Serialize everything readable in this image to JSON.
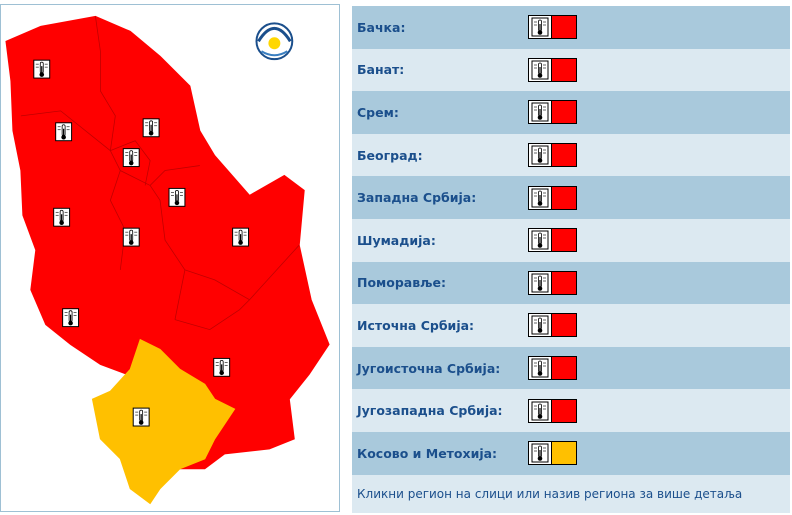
{
  "regions": [
    {
      "name": "Бачка:",
      "color": "#ff0000"
    },
    {
      "name": "Банат:",
      "color": "#ff0000"
    },
    {
      "name": "Срем:",
      "color": "#ff0000"
    },
    {
      "name": "Београд:",
      "color": "#ff0000"
    },
    {
      "name": "Западна Србија:",
      "color": "#ff0000"
    },
    {
      "name": "Шумадија:",
      "color": "#ff0000"
    },
    {
      "name": "Поморавље:",
      "color": "#ff0000"
    },
    {
      "name": "Источна Србија:",
      "color": "#ff0000"
    },
    {
      "name": "Југоисточна Србија:",
      "color": "#ff0000"
    },
    {
      "name": "Југозападна Србија:",
      "color": "#ff0000"
    },
    {
      "name": "Косово и Метохија:",
      "color": "#ffc000"
    }
  ],
  "footer": "Кликни регион на слици или назив региона за више детаља"
}
